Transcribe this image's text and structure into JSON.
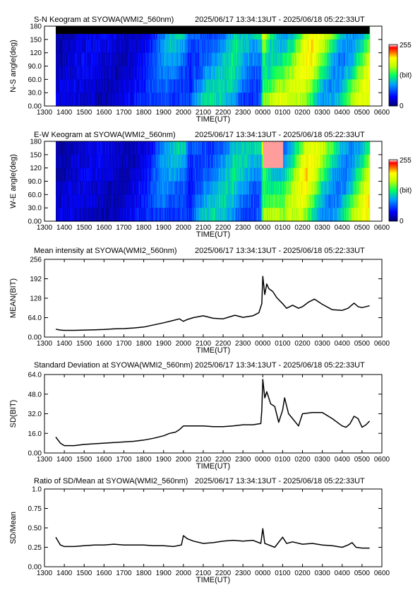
{
  "time_range": "2025/06/17 13:34:13UT - 2025/06/18 05:22:33UT",
  "x_tick_labels": [
    "1300",
    "1400",
    "1500",
    "1600",
    "1700",
    "1800",
    "1900",
    "2000",
    "2100",
    "2200",
    "2300",
    "0000",
    "0100",
    "0200",
    "0300",
    "0400",
    "0500",
    "0600"
  ],
  "x_axis_label": "TIME(UT)",
  "colorbar": {
    "max_label": "255",
    "unit_label": "(bit)",
    "min_label": "0"
  },
  "colors": {
    "line": "#000000",
    "mask": "#000000"
  },
  "chart_data": [
    {
      "type": "heatmap",
      "title": "S-N Keogram at SYOWA(WMI2_560nm)",
      "ylabel": "N-S angle(deg)",
      "y_tick_labels": [
        "180",
        "150",
        "120",
        "90.0",
        "60.0",
        "30.0",
        "0.00"
      ],
      "xlim_hours": [
        13.0,
        30.0
      ],
      "ylim": [
        0,
        180
      ],
      "data_x_start_hours": 13.57,
      "data_x_end_hours": 29.38,
      "colorscale": "rainbow",
      "crange": [
        0,
        255
      ],
      "intensity_profile": {
        "x_hours": [
          13.57,
          14,
          15,
          16,
          17,
          18,
          18.5,
          19,
          19.5,
          20,
          20.3,
          20.6,
          21,
          21.5,
          22,
          22.5,
          23,
          23.5,
          23.9,
          24.0,
          24.2,
          24.5,
          25,
          25.5,
          26,
          26.5,
          27,
          27.5,
          28,
          28.5,
          29,
          29.38
        ],
        "level": [
          30,
          28,
          30,
          32,
          35,
          42,
          55,
          75,
          95,
          100,
          80,
          105,
          110,
          100,
          95,
          105,
          90,
          95,
          120,
          230,
          200,
          190,
          160,
          150,
          170,
          175,
          160,
          150,
          140,
          155,
          160,
          170
        ]
      }
    },
    {
      "type": "heatmap",
      "title": "E-W Keogram at SYOWA(WMI2_560nm)",
      "ylabel": "W-E angle(deg)",
      "y_tick_labels": [
        "180",
        "150",
        "120",
        "90.0",
        "60.0",
        "30.0",
        "0.00"
      ],
      "xlim_hours": [
        13.0,
        30.0
      ],
      "ylim": [
        0,
        180
      ],
      "data_x_start_hours": 13.57,
      "data_x_end_hours": 29.38,
      "colorscale": "rainbow",
      "crange": [
        0,
        255
      ],
      "intensity_profile": {
        "x_hours": [
          13.57,
          14,
          15,
          16,
          17,
          18,
          18.5,
          19,
          19.5,
          20,
          20.3,
          20.6,
          21,
          21.5,
          22,
          22.5,
          23,
          23.5,
          23.9,
          24.0,
          24.2,
          24.5,
          25,
          25.5,
          26,
          26.5,
          27,
          27.5,
          28,
          28.5,
          29,
          29.38
        ],
        "level": [
          28,
          26,
          28,
          30,
          33,
          40,
          55,
          78,
          90,
          110,
          70,
          100,
          105,
          95,
          92,
          100,
          95,
          100,
          125,
          235,
          210,
          180,
          140,
          150,
          175,
          170,
          150,
          140,
          135,
          150,
          165,
          175
        ]
      }
    },
    {
      "type": "line",
      "title": "Mean intensity at SYOWA(WMI2_560nm)",
      "xlabel": "TIME(UT)",
      "ylabel": "MEAN(BIT)",
      "y_tick_labels": [
        "256",
        "192",
        "128",
        "64.0",
        "0.00"
      ],
      "xlim_hours": [
        13.0,
        30.0
      ],
      "ylim": [
        0,
        256
      ],
      "series": [
        {
          "x_hours": [
            13.57,
            13.8,
            14.0,
            14.5,
            15.0,
            15.5,
            16.0,
            16.5,
            17.0,
            17.5,
            18.0,
            18.5,
            19.0,
            19.5,
            19.8,
            20.0,
            20.2,
            20.5,
            21.0,
            21.5,
            22.0,
            22.3,
            22.6,
            23.0,
            23.5,
            23.8,
            23.95,
            24.0,
            24.1,
            24.2,
            24.3,
            24.5,
            24.7,
            25.0,
            25.2,
            25.5,
            25.8,
            26.0,
            26.3,
            26.6,
            27.0,
            27.5,
            28.0,
            28.3,
            28.6,
            28.8,
            29.0,
            29.38
          ],
          "y": [
            26,
            23,
            22,
            22,
            23,
            24,
            25,
            27,
            28,
            30,
            33,
            40,
            47,
            55,
            60,
            52,
            58,
            64,
            70,
            62,
            60,
            66,
            72,
            65,
            70,
            80,
            110,
            200,
            140,
            175,
            160,
            150,
            130,
            110,
            95,
            105,
            95,
            100,
            115,
            125,
            108,
            90,
            88,
            95,
            112,
            100,
            97,
            103
          ]
        }
      ]
    },
    {
      "type": "line",
      "title": "Standard Deviation at SYOWA(WMI2_560nm)",
      "xlabel": "TIME(UT)",
      "ylabel": "SD(BIT)",
      "y_tick_labels": [
        "64.0",
        "48.0",
        "32.0",
        "16.0",
        "0.00"
      ],
      "xlim_hours": [
        13.0,
        30.0
      ],
      "ylim": [
        0,
        64
      ],
      "series": [
        {
          "x_hours": [
            13.57,
            13.8,
            14.0,
            14.5,
            15.0,
            15.5,
            16.0,
            16.5,
            17.0,
            17.5,
            18.0,
            18.5,
            19.0,
            19.3,
            19.6,
            19.8,
            20.0,
            20.5,
            21.0,
            21.5,
            22.0,
            22.5,
            23.0,
            23.5,
            23.9,
            23.95,
            24.0,
            24.1,
            24.2,
            24.4,
            24.6,
            24.8,
            25.0,
            25.1,
            25.3,
            25.5,
            25.8,
            26.0,
            26.5,
            27.0,
            27.5,
            28.0,
            28.2,
            28.4,
            28.6,
            28.8,
            29.0,
            29.2,
            29.38
          ],
          "y": [
            13,
            8,
            6,
            6,
            7,
            7.5,
            8,
            8.5,
            9,
            9.5,
            10.5,
            12,
            14,
            16,
            17,
            19,
            22,
            22,
            22,
            21.5,
            21.5,
            22,
            23,
            23,
            24,
            35,
            60,
            45,
            50,
            40,
            38,
            25,
            35,
            45,
            32,
            28,
            22,
            32,
            33,
            33,
            28,
            22,
            21,
            24,
            30,
            28,
            21,
            23,
            26
          ]
        }
      ]
    },
    {
      "type": "line",
      "title": "Ratio of SD/Mean at SYOWA(WMI2_560nm)",
      "xlabel": "TIME(UT)",
      "ylabel": "SD/Mean",
      "y_tick_labels": [
        "1.0",
        "0.75",
        "0.50",
        "0.25",
        "0.00"
      ],
      "xlim_hours": [
        13.0,
        30.0
      ],
      "ylim": [
        0,
        1.0
      ],
      "series": [
        {
          "x_hours": [
            13.57,
            13.8,
            14.0,
            14.5,
            15.0,
            15.5,
            16.0,
            16.5,
            17.0,
            17.5,
            18.0,
            18.5,
            19.0,
            19.5,
            19.9,
            20.0,
            20.2,
            20.5,
            21.0,
            21.5,
            22.0,
            22.5,
            23.0,
            23.5,
            23.9,
            24.0,
            24.1,
            24.3,
            24.6,
            25.0,
            25.2,
            25.5,
            26.0,
            26.5,
            27.0,
            27.5,
            28.0,
            28.3,
            28.5,
            28.7,
            29.0,
            29.38
          ],
          "y": [
            0.38,
            0.28,
            0.26,
            0.26,
            0.27,
            0.28,
            0.28,
            0.29,
            0.28,
            0.28,
            0.28,
            0.27,
            0.27,
            0.26,
            0.28,
            0.4,
            0.36,
            0.33,
            0.3,
            0.31,
            0.33,
            0.34,
            0.33,
            0.34,
            0.3,
            0.49,
            0.3,
            0.28,
            0.25,
            0.38,
            0.3,
            0.32,
            0.29,
            0.3,
            0.28,
            0.27,
            0.25,
            0.28,
            0.31,
            0.25,
            0.24,
            0.24
          ]
        }
      ]
    }
  ]
}
